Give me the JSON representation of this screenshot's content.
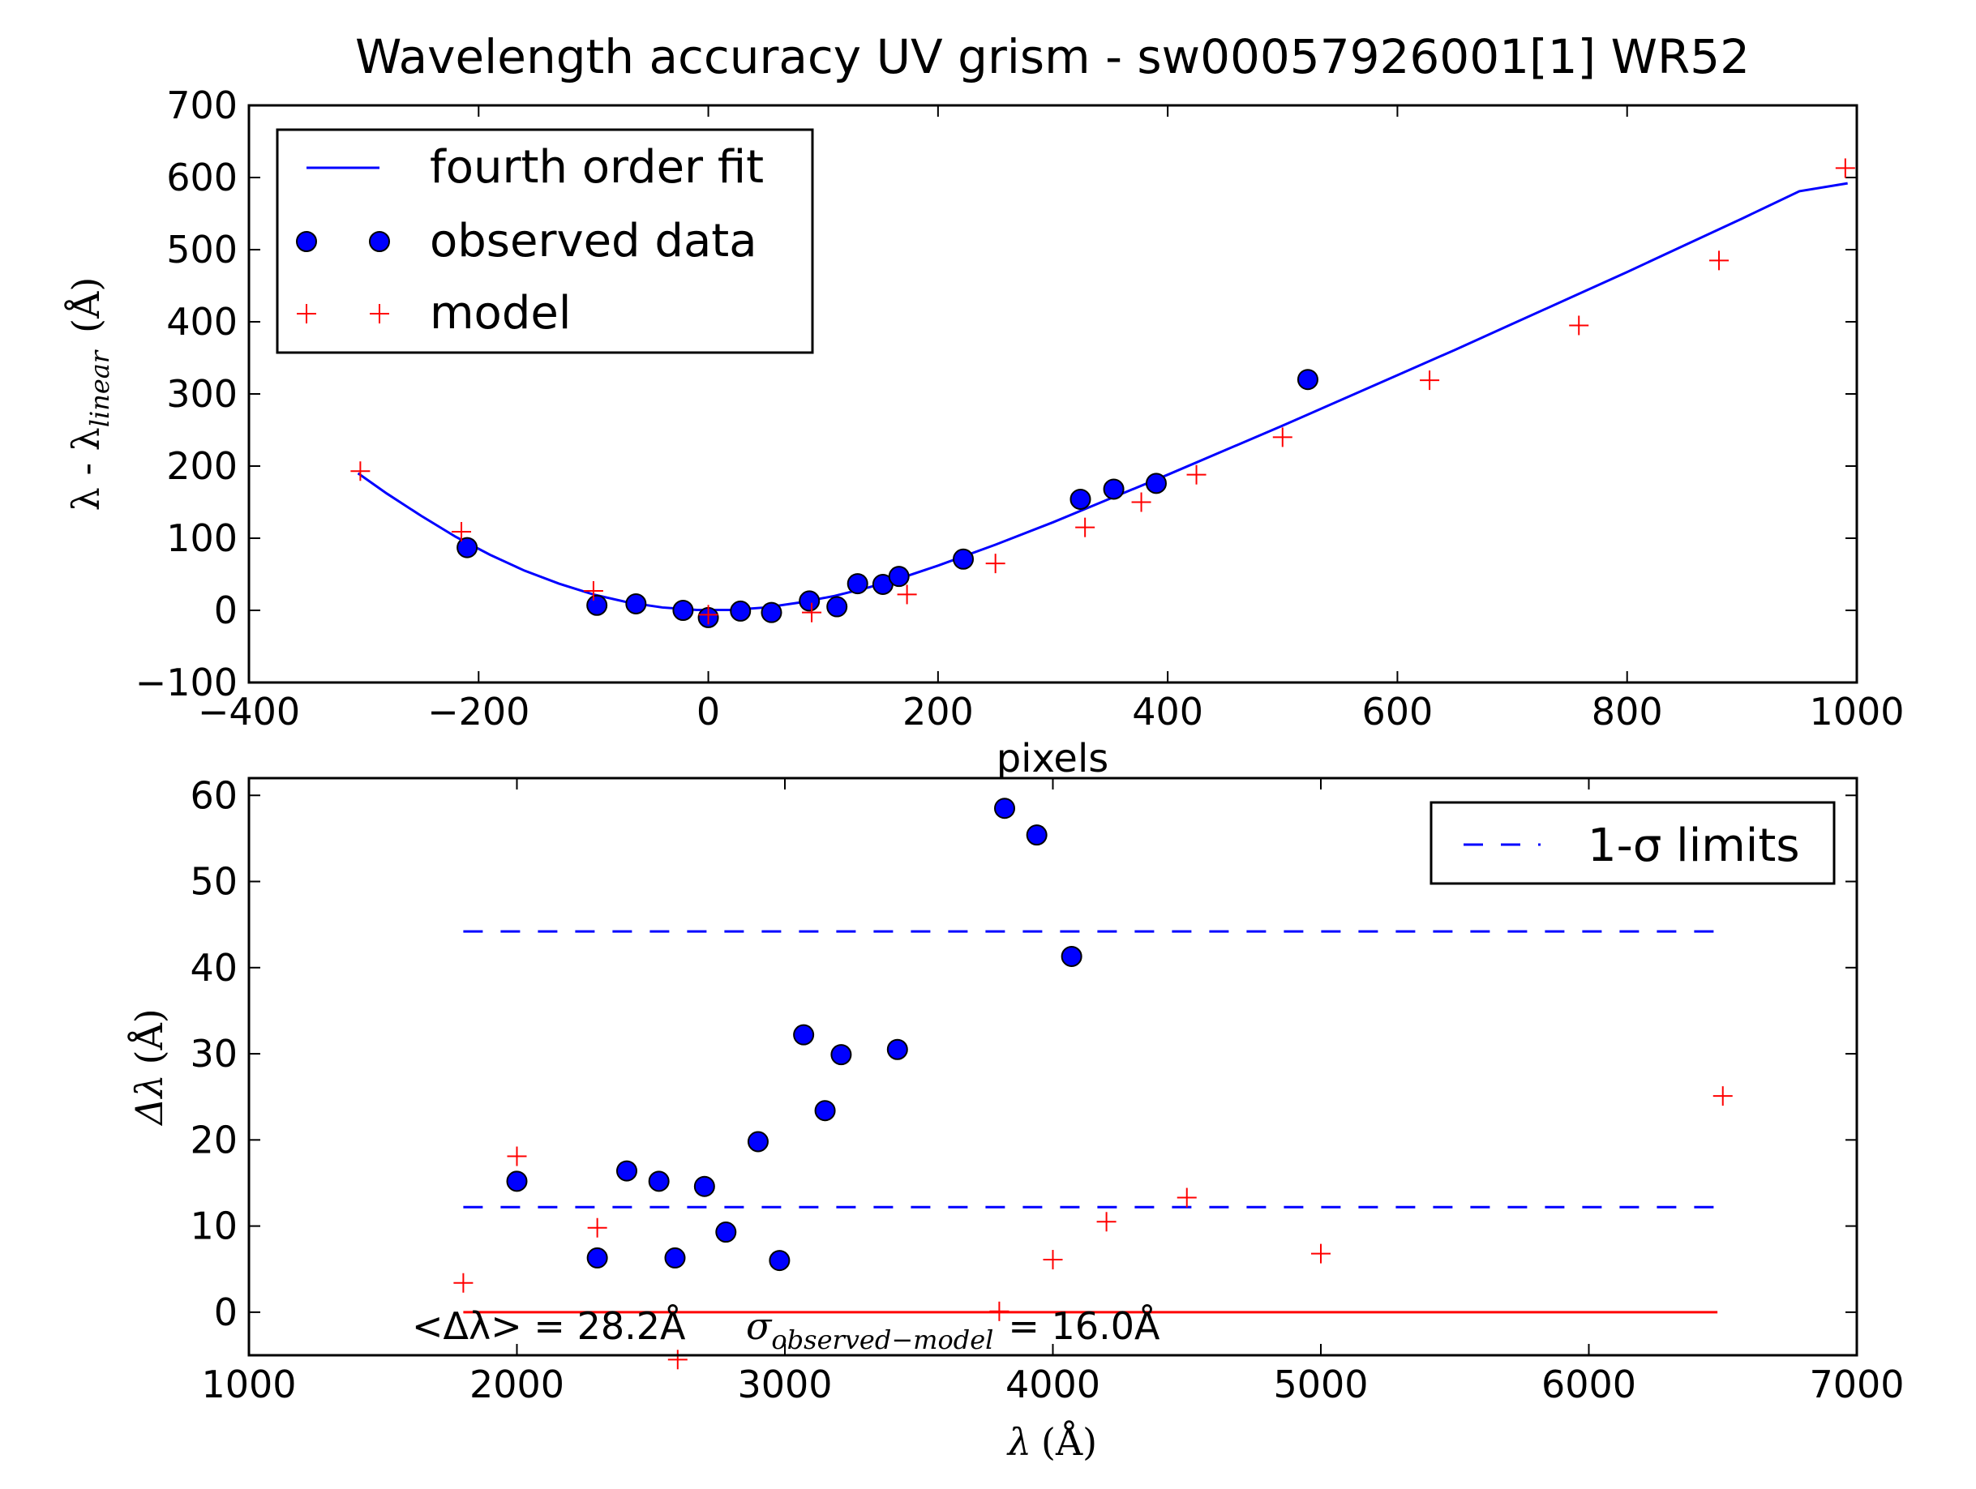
{
  "chart_data": [
    {
      "type": "scatter",
      "title": "Wavelength accuracy UV grism - sw00057926001[1] WR52",
      "xlabel": "pixels",
      "ylabel": {
        "main": "λ - λ",
        "sub": "linear",
        "unit": "(Å)"
      },
      "xlim": [
        -400,
        1000
      ],
      "ylim": [
        -100,
        700
      ],
      "xticks": [
        -400,
        -200,
        0,
        200,
        400,
        600,
        800,
        1000
      ],
      "yticks": [
        -100,
        0,
        100,
        200,
        300,
        400,
        500,
        600,
        700
      ],
      "grid": false,
      "legend_position": "upper left",
      "legend": [
        "fourth order fit",
        "observed data",
        "model"
      ],
      "series": [
        {
          "name": "fourth order fit",
          "style": "line",
          "color": "#0000ff",
          "x": [
            -305,
            -280,
            -250,
            -220,
            -190,
            -160,
            -130,
            -100,
            -70,
            -40,
            -10,
            20,
            50,
            80,
            110,
            140,
            170,
            200,
            250,
            300,
            350,
            400,
            450,
            500,
            550,
            600,
            650,
            700,
            750,
            800,
            850,
            900,
            950,
            992
          ],
          "y": [
            190,
            162,
            131,
            102,
            77,
            55,
            37,
            22,
            11,
            4,
            0.5,
            0.5,
            4,
            11,
            20,
            32,
            46,
            62,
            91,
            122,
            155,
            188,
            222,
            256,
            291,
            326,
            361,
            397,
            433,
            469,
            506,
            543,
            581,
            592
          ]
        },
        {
          "name": "observed data",
          "style": "markers",
          "color": "#0000ff",
          "x": [
            -210,
            -97,
            -63,
            -22,
            0,
            28,
            55,
            88,
            112,
            130,
            152,
            166,
            222,
            324,
            353,
            390,
            522
          ],
          "y": [
            87,
            7,
            9,
            0,
            -10,
            -1,
            -3,
            13,
            5,
            37,
            36,
            47,
            71,
            154,
            168,
            176,
            320
          ]
        },
        {
          "name": "model",
          "style": "plus",
          "color": "#ff0000",
          "x": [
            -303,
            -215,
            -100,
            0,
            90,
            173,
            250,
            328,
            377,
            425,
            500,
            628,
            758,
            880,
            990
          ],
          "y": [
            193,
            109,
            27,
            -6,
            -3,
            22,
            65,
            115,
            150,
            188,
            240,
            319,
            395,
            485,
            613
          ]
        }
      ]
    },
    {
      "type": "scatter",
      "xlabel": {
        "main": "λ",
        "unit": "(Å)"
      },
      "ylabel": {
        "main": "Δλ",
        "unit": "(Å)"
      },
      "xlim": [
        1000,
        7000
      ],
      "ylim": [
        -5,
        62
      ],
      "xticks": [
        1000,
        2000,
        3000,
        4000,
        5000,
        6000,
        7000
      ],
      "yticks": [
        0,
        10,
        20,
        30,
        40,
        50,
        60
      ],
      "grid": false,
      "legend_position": "upper right",
      "legend": [
        "1-σ limits"
      ],
      "annotation": {
        "mean_label": "<Δλ> = 28.2Å",
        "sigma_symbol": "σ",
        "sigma_sub": "observed−model",
        "sigma_value": "= 16.0Å"
      },
      "series": [
        {
          "name": "1-σ limits",
          "style": "dashed",
          "color": "#0000ff",
          "lines": [
            {
              "x": [
                1800,
                6480
              ],
              "y": [
                44.2,
                44.2
              ]
            },
            {
              "x": [
                1800,
                6480
              ],
              "y": [
                12.2,
                12.2
              ]
            }
          ]
        },
        {
          "style": "solid",
          "color": "#ff0000",
          "x": [
            1800,
            6480
          ],
          "y": [
            0,
            0
          ]
        },
        {
          "style": "markers",
          "color": "#0000ff",
          "x": [
            2000,
            2300,
            2410,
            2530,
            2590,
            2700,
            2780,
            2900,
            2980,
            3070,
            3150,
            3210,
            3420,
            3820,
            3940,
            4070
          ],
          "y": [
            15.2,
            6.3,
            16.4,
            15.2,
            6.3,
            14.6,
            9.3,
            19.8,
            6.0,
            32.2,
            23.4,
            29.9,
            30.5,
            58.5,
            55.4,
            41.3
          ]
        },
        {
          "style": "plus",
          "color": "#ff0000",
          "x": [
            1800,
            2000,
            2300,
            2600,
            3800,
            4000,
            4200,
            4500,
            5000,
            6500
          ],
          "y": [
            3.4,
            18.1,
            9.8,
            -5.5,
            0.1,
            6.1,
            10.5,
            13.3,
            6.8,
            25.1
          ]
        }
      ]
    }
  ]
}
